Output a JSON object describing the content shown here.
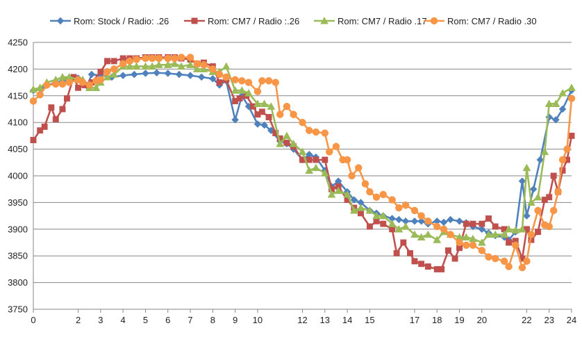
{
  "chart_data": {
    "type": "line",
    "title": "",
    "xlabel": "",
    "ylabel": "",
    "xlim": [
      0,
      24
    ],
    "ylim": [
      3750,
      4250
    ],
    "x_ticks": [
      0,
      2,
      3,
      4,
      5,
      6,
      7,
      8,
      9,
      10,
      12,
      13,
      14,
      15,
      17,
      18,
      19,
      20,
      22,
      23,
      24
    ],
    "x_tick_labels": [
      "0",
      "2",
      "3",
      "4",
      "5",
      "6",
      "7",
      "8",
      "9",
      "10",
      "12",
      "13",
      "14",
      "15",
      "17",
      "18",
      "19",
      "20",
      "22",
      "23",
      "24"
    ],
    "y_ticks": [
      3750,
      3800,
      3850,
      3900,
      3950,
      4000,
      4050,
      4100,
      4150,
      4200,
      4250
    ],
    "y_tick_labels": [
      "3750",
      "3800",
      "3850",
      "3900",
      "3950",
      "4000",
      "4050",
      "4100",
      "4150",
      "4200",
      "4250"
    ],
    "grid": true,
    "legend_position": "top",
    "series": [
      {
        "name": "Rom: Stock / Radio: .26",
        "color": "#4f81bd",
        "marker": "diamond",
        "points": [
          [
            0,
            4160
          ],
          [
            0.3,
            4163
          ],
          [
            0.5,
            4168
          ],
          [
            1,
            4175
          ],
          [
            1.5,
            4180
          ],
          [
            2,
            4183
          ],
          [
            2.4,
            4168
          ],
          [
            2.6,
            4190
          ],
          [
            3,
            4188
          ],
          [
            3.5,
            4185
          ],
          [
            4,
            4188
          ],
          [
            4.5,
            4190
          ],
          [
            5,
            4192
          ],
          [
            5.5,
            4193
          ],
          [
            6,
            4192
          ],
          [
            6.5,
            4190
          ],
          [
            7,
            4188
          ],
          [
            7.5,
            4185
          ],
          [
            8,
            4182
          ],
          [
            8.3,
            4170
          ],
          [
            8.6,
            4178
          ],
          [
            9,
            4105
          ],
          [
            9.3,
            4150
          ],
          [
            9.6,
            4130
          ],
          [
            10,
            4097
          ],
          [
            10.3,
            4095
          ],
          [
            10.6,
            4085
          ],
          [
            11,
            4065
          ],
          [
            11.3,
            4060
          ],
          [
            11.6,
            4050
          ],
          [
            12,
            4030
          ],
          [
            12.3,
            4040
          ],
          [
            12.6,
            4035
          ],
          [
            13,
            4010
          ],
          [
            13.3,
            3980
          ],
          [
            13.6,
            3990
          ],
          [
            14,
            3970
          ],
          [
            14.3,
            3955
          ],
          [
            14.6,
            3950
          ],
          [
            15,
            3935
          ],
          [
            15.3,
            3930
          ],
          [
            15.6,
            3925
          ],
          [
            16,
            3920
          ],
          [
            16.3,
            3918
          ],
          [
            16.6,
            3915
          ],
          [
            17,
            3915
          ],
          [
            17.3,
            3915
          ],
          [
            17.6,
            3910
          ],
          [
            18,
            3915
          ],
          [
            18.3,
            3913
          ],
          [
            18.6,
            3918
          ],
          [
            19,
            3915
          ],
          [
            19.3,
            3912
          ],
          [
            19.6,
            3905
          ],
          [
            20,
            3900
          ],
          [
            20.3,
            3893
          ],
          [
            20.6,
            3888
          ],
          [
            21,
            3885
          ],
          [
            21.2,
            3880
          ],
          [
            21.5,
            3895
          ],
          [
            21.8,
            3990
          ],
          [
            22,
            3925
          ],
          [
            22.3,
            3975
          ],
          [
            22.6,
            4030
          ],
          [
            23,
            4110
          ],
          [
            23.3,
            4105
          ],
          [
            23.6,
            4125
          ],
          [
            24,
            4160
          ]
        ]
      },
      {
        "name": "Rom: CM7 / Radio :.26",
        "color": "#c0504d",
        "marker": "square",
        "points": [
          [
            0,
            4067
          ],
          [
            0.3,
            4085
          ],
          [
            0.5,
            4092
          ],
          [
            0.8,
            4128
          ],
          [
            1,
            4106
          ],
          [
            1.3,
            4125
          ],
          [
            1.5,
            4145
          ],
          [
            1.8,
            4185
          ],
          [
            2,
            4165
          ],
          [
            2.3,
            4170
          ],
          [
            2.6,
            4175
          ],
          [
            3,
            4195
          ],
          [
            3.3,
            4215
          ],
          [
            3.6,
            4215
          ],
          [
            4,
            4220
          ],
          [
            4.3,
            4220
          ],
          [
            4.6,
            4220
          ],
          [
            5,
            4222
          ],
          [
            5.3,
            4222
          ],
          [
            5.6,
            4222
          ],
          [
            6,
            4222
          ],
          [
            6.3,
            4222
          ],
          [
            6.6,
            4220
          ],
          [
            7,
            4218
          ],
          [
            7.3,
            4210
          ],
          [
            7.6,
            4212
          ],
          [
            8,
            4205
          ],
          [
            8.3,
            4175
          ],
          [
            8.6,
            4180
          ],
          [
            9,
            4140
          ],
          [
            9.2,
            4145
          ],
          [
            9.5,
            4150
          ],
          [
            9.8,
            4130
          ],
          [
            10,
            4115
          ],
          [
            10.2,
            4120
          ],
          [
            10.5,
            4110
          ],
          [
            10.8,
            4080
          ],
          [
            11,
            4070
          ],
          [
            11.3,
            4062
          ],
          [
            11.6,
            4055
          ],
          [
            12,
            4030
          ],
          [
            12.3,
            4030
          ],
          [
            12.6,
            4030
          ],
          [
            13,
            4030
          ],
          [
            13.3,
            3975
          ],
          [
            13.6,
            3980
          ],
          [
            14,
            3955
          ],
          [
            14.3,
            3940
          ],
          [
            14.6,
            3930
          ],
          [
            15,
            3905
          ],
          [
            15.3,
            3915
          ],
          [
            15.6,
            3910
          ],
          [
            16,
            3900
          ],
          [
            16.2,
            3855
          ],
          [
            16.5,
            3875
          ],
          [
            16.8,
            3855
          ],
          [
            17,
            3840
          ],
          [
            17.3,
            3835
          ],
          [
            17.6,
            3830
          ],
          [
            18,
            3825
          ],
          [
            18.2,
            3825
          ],
          [
            18.5,
            3860
          ],
          [
            18.8,
            3845
          ],
          [
            19,
            3865
          ],
          [
            19.3,
            3910
          ],
          [
            19.6,
            3910
          ],
          [
            20,
            3910
          ],
          [
            20.3,
            3920
          ],
          [
            20.6,
            3905
          ],
          [
            21,
            3900
          ],
          [
            21.2,
            3875
          ],
          [
            21.5,
            3878
          ],
          [
            21.8,
            3845
          ],
          [
            22,
            3900
          ],
          [
            22.2,
            3880
          ],
          [
            22.5,
            3895
          ],
          [
            22.8,
            3955
          ],
          [
            23,
            3960
          ],
          [
            23.2,
            4000
          ],
          [
            23.4,
            3970
          ],
          [
            23.6,
            4010
          ],
          [
            23.8,
            4030
          ],
          [
            24,
            4075
          ]
        ]
      },
      {
        "name": "Rom: CM7 / Radio .17",
        "color": "#9bbb59",
        "marker": "triangle",
        "points": [
          [
            0,
            4162
          ],
          [
            0.3,
            4165
          ],
          [
            0.6,
            4175
          ],
          [
            1,
            4180
          ],
          [
            1.3,
            4185
          ],
          [
            1.6,
            4185
          ],
          [
            2,
            4180
          ],
          [
            2.2,
            4180
          ],
          [
            2.5,
            4165
          ],
          [
            2.8,
            4165
          ],
          [
            3,
            4175
          ],
          [
            3.3,
            4185
          ],
          [
            3.6,
            4190
          ],
          [
            4,
            4205
          ],
          [
            4.3,
            4205
          ],
          [
            4.6,
            4205
          ],
          [
            5,
            4205
          ],
          [
            5.3,
            4205
          ],
          [
            5.6,
            4208
          ],
          [
            6,
            4208
          ],
          [
            6.3,
            4210
          ],
          [
            6.6,
            4205
          ],
          [
            7,
            4208
          ],
          [
            7.3,
            4200
          ],
          [
            7.6,
            4200
          ],
          [
            8,
            4195
          ],
          [
            8.3,
            4195
          ],
          [
            8.6,
            4205
          ],
          [
            9,
            4160
          ],
          [
            9.3,
            4160
          ],
          [
            9.6,
            4155
          ],
          [
            10,
            4135
          ],
          [
            10.3,
            4135
          ],
          [
            10.6,
            4130
          ],
          [
            11,
            4060
          ],
          [
            11.3,
            4075
          ],
          [
            11.6,
            4060
          ],
          [
            12,
            4045
          ],
          [
            12.3,
            4010
          ],
          [
            12.6,
            4015
          ],
          [
            13,
            4005
          ],
          [
            13.3,
            3965
          ],
          [
            13.6,
            3972
          ],
          [
            14,
            3965
          ],
          [
            14.3,
            3935
          ],
          [
            14.6,
            3940
          ],
          [
            15,
            3935
          ],
          [
            15.3,
            3925
          ],
          [
            15.6,
            3925
          ],
          [
            16,
            3910
          ],
          [
            16.3,
            3900
          ],
          [
            16.6,
            3905
          ],
          [
            17,
            3890
          ],
          [
            17.3,
            3885
          ],
          [
            17.6,
            3890
          ],
          [
            18,
            3880
          ],
          [
            18.3,
            3895
          ],
          [
            18.6,
            3890
          ],
          [
            19,
            3885
          ],
          [
            19.3,
            3885
          ],
          [
            19.6,
            3882
          ],
          [
            20,
            3875
          ],
          [
            20.3,
            3890
          ],
          [
            20.6,
            3890
          ],
          [
            21,
            3890
          ],
          [
            21.2,
            3900
          ],
          [
            21.5,
            3898
          ],
          [
            21.8,
            3900
          ],
          [
            22,
            4015
          ],
          [
            22.2,
            3950
          ],
          [
            22.5,
            3960
          ],
          [
            22.8,
            4045
          ],
          [
            23,
            4135
          ],
          [
            23.3,
            4135
          ],
          [
            23.6,
            4155
          ],
          [
            24,
            4165
          ]
        ]
      },
      {
        "name": "Rom: CM7 / Radio .30",
        "color": "#f79646",
        "marker": "circle",
        "points": [
          [
            0,
            4140
          ],
          [
            0.3,
            4152
          ],
          [
            0.6,
            4170
          ],
          [
            1,
            4172
          ],
          [
            1.3,
            4172
          ],
          [
            1.6,
            4175
          ],
          [
            2,
            4180
          ],
          [
            2.2,
            4175
          ],
          [
            2.5,
            4170
          ],
          [
            2.8,
            4178
          ],
          [
            3,
            4180
          ],
          [
            3.3,
            4195
          ],
          [
            3.6,
            4200
          ],
          [
            4,
            4210
          ],
          [
            4.3,
            4215
          ],
          [
            4.6,
            4218
          ],
          [
            5,
            4220
          ],
          [
            5.3,
            4220
          ],
          [
            5.6,
            4220
          ],
          [
            6,
            4220
          ],
          [
            6.3,
            4220
          ],
          [
            6.6,
            4222
          ],
          [
            7,
            4222
          ],
          [
            7.3,
            4210
          ],
          [
            7.6,
            4208
          ],
          [
            8,
            4200
          ],
          [
            8.3,
            4190
          ],
          [
            8.6,
            4185
          ],
          [
            9,
            4180
          ],
          [
            9.3,
            4178
          ],
          [
            9.6,
            4175
          ],
          [
            10,
            4158
          ],
          [
            10.2,
            4178
          ],
          [
            10.5,
            4178
          ],
          [
            10.8,
            4175
          ],
          [
            11,
            4115
          ],
          [
            11.3,
            4130
          ],
          [
            11.6,
            4115
          ],
          [
            12,
            4100
          ],
          [
            12.3,
            4085
          ],
          [
            12.6,
            4082
          ],
          [
            13,
            4080
          ],
          [
            13.2,
            4045
          ],
          [
            13.5,
            4055
          ],
          [
            13.8,
            4030
          ],
          [
            14,
            4030
          ],
          [
            14.2,
            4000
          ],
          [
            14.5,
            4015
          ],
          [
            14.8,
            3985
          ],
          [
            15,
            3970
          ],
          [
            15.3,
            3960
          ],
          [
            15.6,
            3965
          ],
          [
            16,
            3955
          ],
          [
            16.3,
            3940
          ],
          [
            16.6,
            3945
          ],
          [
            17,
            3935
          ],
          [
            17.3,
            3925
          ],
          [
            17.6,
            3915
          ],
          [
            18,
            3905
          ],
          [
            18.3,
            3900
          ],
          [
            18.6,
            3890
          ],
          [
            19,
            3875
          ],
          [
            19.3,
            3870
          ],
          [
            19.6,
            3870
          ],
          [
            20,
            3860
          ],
          [
            20.3,
            3848
          ],
          [
            20.6,
            3845
          ],
          [
            21,
            3840
          ],
          [
            21.2,
            3830
          ],
          [
            21.5,
            3870
          ],
          [
            21.8,
            3828
          ],
          [
            22,
            3840
          ],
          [
            22.2,
            3890
          ],
          [
            22.5,
            3935
          ],
          [
            22.8,
            3908
          ],
          [
            23,
            3905
          ],
          [
            23.2,
            3935
          ],
          [
            23.4,
            3970
          ],
          [
            23.6,
            4030
          ],
          [
            23.8,
            4050
          ],
          [
            24,
            4145
          ]
        ]
      }
    ]
  }
}
